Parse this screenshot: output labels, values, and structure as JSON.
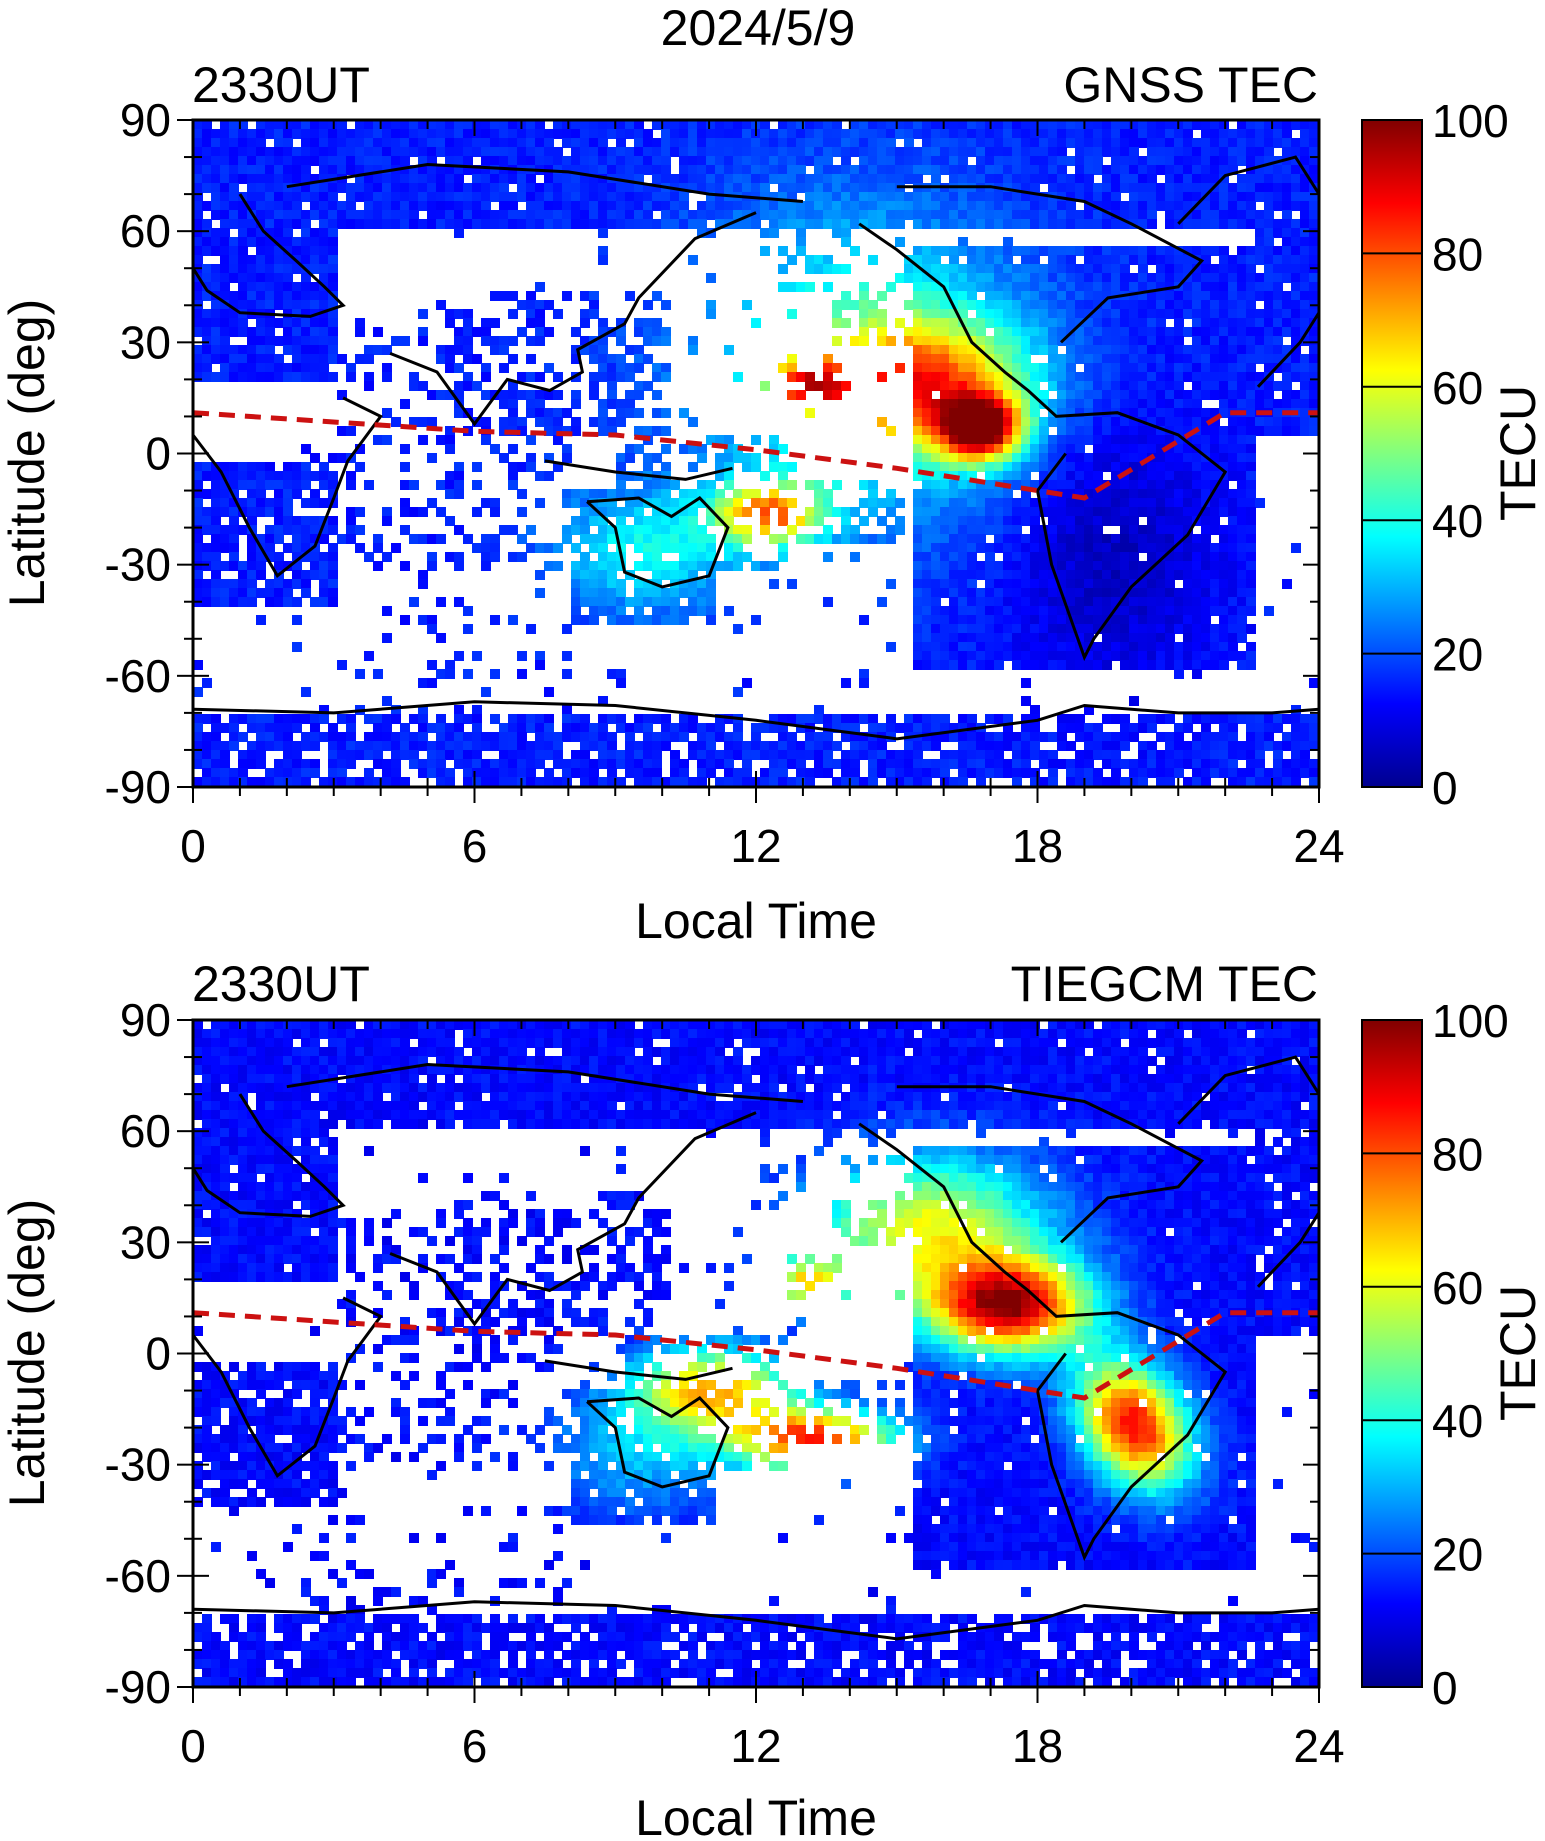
{
  "figure": {
    "title": "2024/5/9"
  },
  "colorbar": {
    "label": "TECU",
    "range": [
      0,
      100
    ],
    "ticks": [
      "100",
      "80",
      "60",
      "40",
      "20",
      "0"
    ],
    "colors": [
      "#00008f",
      "#0000ff",
      "#0080ff",
      "#00ffff",
      "#80ff80",
      "#ffff00",
      "#ff8000",
      "#ff0000",
      "#800000"
    ]
  },
  "chart_data": [
    {
      "type": "heatmap",
      "panel": "top",
      "left_label": "2330UT",
      "title": "GNSS TEC",
      "xlabel": "Local Time",
      "ylabel": "Latitude (deg)",
      "xlim": [
        0,
        24
      ],
      "ylim": [
        -90,
        90
      ],
      "xticks": [
        "0",
        "6",
        "12",
        "18",
        "24"
      ],
      "yticks": [
        "90",
        "60",
        "30",
        "0",
        "-30",
        "-60",
        "-90"
      ],
      "clim": [
        0,
        100
      ],
      "overlay": "magnetic equator (red dashed) and coastlines",
      "magnetic_equator": {
        "lt": [
          0,
          6,
          9,
          12,
          15,
          19,
          22,
          24
        ],
        "lat": [
          11,
          6,
          5,
          1,
          -4,
          -12,
          11,
          11
        ]
      },
      "regions": [
        {
          "name": "north-pole-cap",
          "lt": [
            0,
            24
          ],
          "lat": [
            55,
            90
          ],
          "tec": 15
        },
        {
          "name": "america-crest",
          "lt": [
            16.2,
            17.5
          ],
          "lat": [
            5,
            15
          ],
          "tec": 90
        },
        {
          "name": "pacific-band",
          "lt": [
            12,
            13.5
          ],
          "lat": [
            -22,
            -8
          ],
          "tec": 75
        },
        {
          "name": "australia",
          "lt": [
            8,
            11
          ],
          "lat": [
            -45,
            -10
          ],
          "tec": 30
        },
        {
          "name": "south-america",
          "lt": [
            19,
            21
          ],
          "lat": [
            -55,
            10
          ],
          "tec": 10
        },
        {
          "name": "antarctic",
          "lt": [
            0,
            24
          ],
          "lat": [
            -90,
            -65
          ],
          "tec": 10
        }
      ]
    },
    {
      "type": "heatmap",
      "panel": "bottom",
      "left_label": "2330UT",
      "title": "TIEGCM TEC",
      "xlabel": "Local Time",
      "ylabel": "Latitude (deg)",
      "xlim": [
        0,
        24
      ],
      "ylim": [
        -90,
        90
      ],
      "xticks": [
        "0",
        "6",
        "12",
        "18",
        "24"
      ],
      "yticks": [
        "90",
        "60",
        "30",
        "0",
        "-30",
        "-60",
        "-90"
      ],
      "clim": [
        0,
        100
      ],
      "overlay": "magnetic equator (red dashed) and coastlines",
      "magnetic_equator": {
        "lt": [
          0,
          6,
          9,
          12,
          15,
          19,
          22,
          24
        ],
        "lat": [
          11,
          6,
          5,
          1,
          -4,
          -12,
          11,
          11
        ]
      },
      "regions": [
        {
          "name": "north-pole-cap",
          "lt": [
            0,
            24
          ],
          "lat": [
            55,
            90
          ],
          "tec": 15
        },
        {
          "name": "north-america-crest",
          "lt": [
            16.5,
            19.5
          ],
          "lat": [
            5,
            30
          ],
          "tec": 95
        },
        {
          "name": "south-america-crest",
          "lt": [
            18.5,
            21.5
          ],
          "lat": [
            -40,
            -5
          ],
          "tec": 85
        },
        {
          "name": "pacific-south-crest",
          "lt": [
            12,
            15
          ],
          "lat": [
            -30,
            -15
          ],
          "tec": 95
        },
        {
          "name": "australia",
          "lt": [
            8,
            11
          ],
          "lat": [
            -45,
            -10
          ],
          "tec": 25
        },
        {
          "name": "antarctic",
          "lt": [
            0,
            24
          ],
          "lat": [
            -90,
            -65
          ],
          "tec": 10
        }
      ]
    }
  ]
}
